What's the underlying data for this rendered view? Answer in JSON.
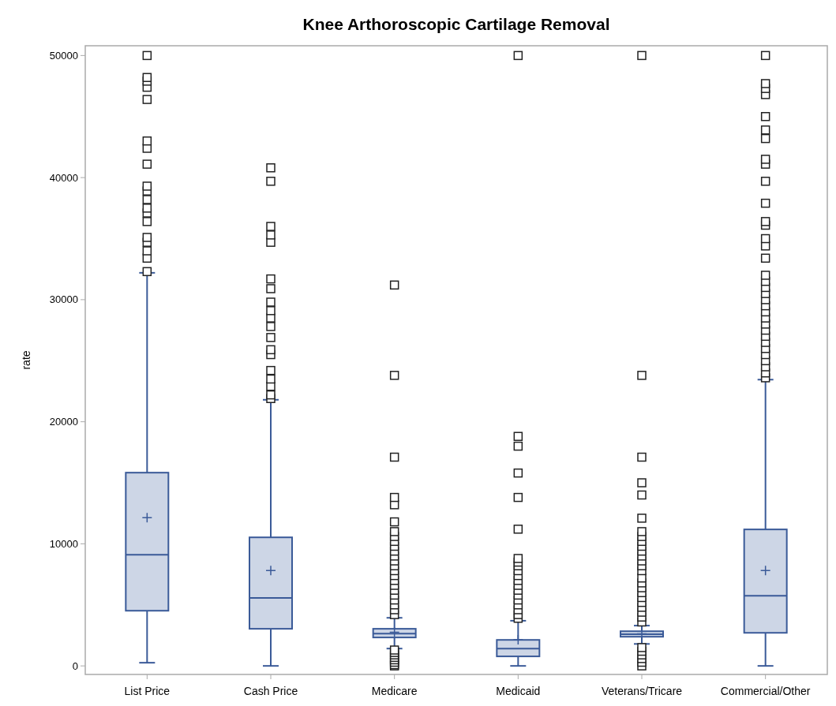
{
  "chart_data": {
    "type": "box",
    "title": "Knee Arthoroscopic Cartilage Removal",
    "ylabel": "rate",
    "categories": [
      "List Price",
      "Cash Price",
      "Medicare",
      "Medicaid",
      "Veterans/Tricare",
      "Commercial/Other"
    ],
    "ylim": [
      -700,
      50800
    ],
    "yticks": [
      0,
      10000,
      20000,
      30000,
      40000,
      50000
    ],
    "grid": false,
    "marker": "square",
    "color": "#3a5a98",
    "boxes": [
      {
        "low": 260,
        "q1": 4520,
        "median": 9110,
        "q3": 15830,
        "high": 32200,
        "mean": 12140,
        "outliers": [
          32300,
          33400,
          34000,
          34700,
          35100,
          36400,
          37100,
          37500,
          38200,
          38900,
          39300,
          41100,
          42400,
          43000,
          46400,
          47400,
          47900,
          48200,
          50000
        ]
      },
      {
        "low": 0,
        "q1": 3040,
        "median": 5560,
        "q3": 10530,
        "high": 21800,
        "mean": 7820,
        "outliers": [
          21900,
          22200,
          22900,
          23500,
          24200,
          25500,
          25900,
          26900,
          27800,
          28500,
          29100,
          29800,
          30900,
          31700,
          34700,
          35300,
          36000,
          39700,
          40800
        ]
      },
      {
        "low": 1420,
        "q1": 2330,
        "median": 2650,
        "q3": 3040,
        "high": 3940,
        "mean": 2750,
        "outliers": [
          0,
          100,
          300,
          500,
          700,
          900,
          1100,
          1300,
          4200,
          4600,
          5000,
          5400,
          5800,
          6200,
          6600,
          7000,
          7400,
          7800,
          8200,
          8600,
          9000,
          9400,
          9800,
          10200,
          10600,
          11000,
          11800,
          13200,
          13800,
          17100,
          23800,
          31200
        ]
      },
      {
        "low": 0,
        "q1": 780,
        "median": 1420,
        "q3": 2130,
        "high": 3700,
        "mean": 2150,
        "outliers": [
          3900,
          4200,
          4600,
          5000,
          5400,
          5800,
          6200,
          6600,
          7000,
          7400,
          7800,
          8200,
          8500,
          8800,
          11200,
          13800,
          15800,
          18000,
          18800,
          50000
        ]
      },
      {
        "low": 1800,
        "q1": 2390,
        "median": 2600,
        "q3": 2840,
        "high": 3300,
        "mean": 2620,
        "outliers": [
          0,
          300,
          600,
          900,
          1200,
          1500,
          3600,
          4000,
          4400,
          4800,
          5200,
          5600,
          6000,
          6400,
          6800,
          7200,
          7800,
          8200,
          8600,
          9000,
          9400,
          9800,
          10200,
          10600,
          11000,
          12100,
          14000,
          15000,
          17100,
          23800,
          50000
        ]
      },
      {
        "low": 0,
        "q1": 2710,
        "median": 5750,
        "q3": 11180,
        "high": 23450,
        "mean": 7820,
        "outliers": [
          23600,
          24000,
          24500,
          25000,
          25500,
          26000,
          26500,
          27000,
          27500,
          28000,
          28500,
          29000,
          29500,
          30000,
          30500,
          31000,
          31500,
          32000,
          33400,
          34400,
          35000,
          36100,
          36400,
          37900,
          39700,
          41100,
          41500,
          43200,
          43900,
          45000,
          46800,
          47300,
          47700,
          50000
        ]
      }
    ]
  }
}
